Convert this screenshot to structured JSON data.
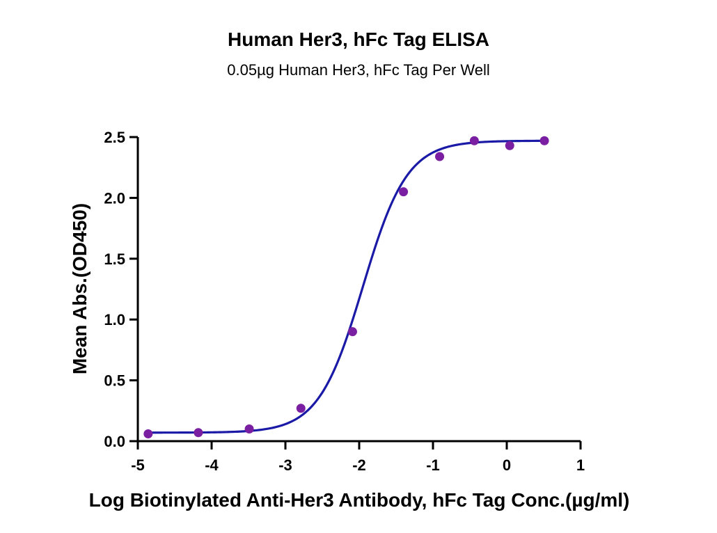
{
  "chart_data": {
    "type": "scatter",
    "title": "Human Her3, hFc Tag ELISA",
    "subtitle": "0.05µg Human Her3, hFc Tag Per Well",
    "xlabel": "Log Biotinylated Anti-Her3 Antibody, hFc Tag Conc.(µg/ml)",
    "ylabel": "Mean Abs.(OD450)",
    "xlim": [
      -5,
      1
    ],
    "ylim": [
      0,
      2.5
    ],
    "xticks": [
      -5,
      -4,
      -3,
      -2,
      -1,
      0,
      1
    ],
    "xtick_labels": [
      "-5",
      "-4",
      "-3",
      "-2",
      "-1",
      "0",
      "1"
    ],
    "yticks": [
      0,
      0.5,
      1,
      1.5,
      2,
      2.5
    ],
    "ytick_labels": [
      "0.0",
      "0.5",
      "1.0",
      "1.5",
      "2.0",
      "2.5"
    ],
    "grid": false,
    "series": [
      {
        "points": [
          {
            "x": -4.86,
            "y": 0.06
          },
          {
            "x": -4.18,
            "y": 0.07
          },
          {
            "x": -3.49,
            "y": 0.1
          },
          {
            "x": -2.79,
            "y": 0.27
          },
          {
            "x": -2.09,
            "y": 0.9
          },
          {
            "x": -1.4,
            "y": 2.05
          },
          {
            "x": -0.91,
            "y": 2.34
          },
          {
            "x": -0.44,
            "y": 2.47
          },
          {
            "x": 0.04,
            "y": 2.43
          },
          {
            "x": 0.51,
            "y": 2.47
          }
        ],
        "fit": {
          "model": "4PL",
          "bottom": 0.07,
          "top": 2.47,
          "log_ec50": -1.95,
          "hill_slope": 1.45,
          "x_range": [
            -4.86,
            0.51
          ]
        },
        "marker_color": "#7b1fa2",
        "line_color": "#1a1aa6"
      }
    ]
  }
}
